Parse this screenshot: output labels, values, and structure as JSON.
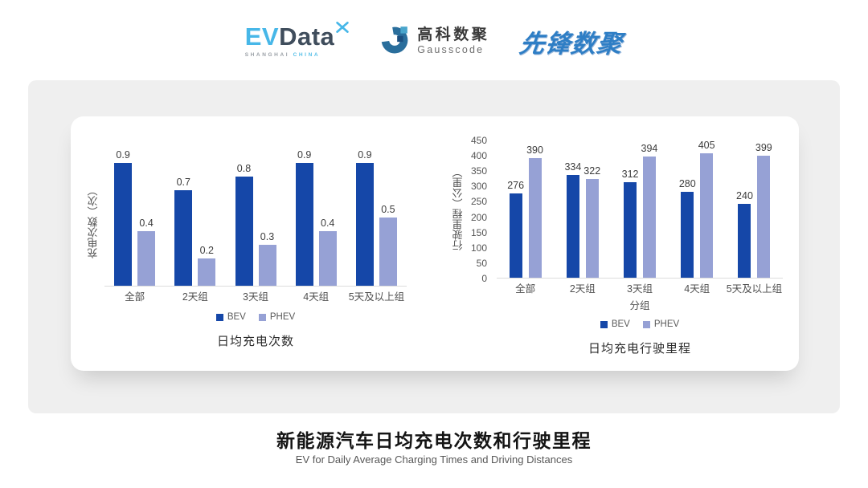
{
  "header": {
    "evdata": {
      "ev": "EV",
      "data": "Data",
      "sub_left": "SHANGHAI",
      "sub_right": "CHINA"
    },
    "gausscode": {
      "cn": "高科数聚",
      "en": "Gausscode"
    },
    "xianfeng": "先锋数聚"
  },
  "colors": {
    "bev": "#1547A8",
    "phev": "#96A1D5",
    "baseline": "#DCDCDC",
    "brand_teal": "#47B7E8",
    "brand_dark": "#3F4D5C",
    "brand_blue": "#2E7EC5",
    "gausscode_blue": "#2A6E9C"
  },
  "chart_data": [
    {
      "type": "bar",
      "title": "日均充电次数",
      "xlabel": "",
      "ylabel": "充电次数（次）",
      "categories": [
        "全部",
        "2天组",
        "3天组",
        "4天组",
        "5天及以上组"
      ],
      "series": [
        {
          "name": "BEV",
          "values": [
            0.9,
            0.7,
            0.8,
            0.9,
            0.9
          ]
        },
        {
          "name": "PHEV",
          "values": [
            0.4,
            0.2,
            0.3,
            0.4,
            0.5
          ]
        }
      ],
      "ylim": [
        0,
        1.0
      ],
      "yticks": [],
      "grid": false,
      "legend_position": "bottom",
      "data_labels": true
    },
    {
      "type": "bar",
      "title": "日均充电行驶里程",
      "xlabel": "分组",
      "ylabel": "行驶里程（公里）",
      "categories": [
        "全部",
        "2天组",
        "3天组",
        "4天组",
        "5天及以上组"
      ],
      "series": [
        {
          "name": "BEV",
          "values": [
            276,
            334,
            312,
            280,
            240
          ]
        },
        {
          "name": "PHEV",
          "values": [
            390,
            322,
            394,
            405,
            399
          ]
        }
      ],
      "ylim": [
        0,
        450
      ],
      "yticks": [
        450,
        400,
        350,
        300,
        250,
        200,
        150,
        100,
        50,
        0
      ],
      "grid": false,
      "legend_position": "bottom",
      "data_labels": true
    }
  ],
  "footer": {
    "title": "新能源汽车日均充电次数和行驶里程",
    "subtitle": "EV for Daily Average Charging Times and Driving Distances"
  }
}
